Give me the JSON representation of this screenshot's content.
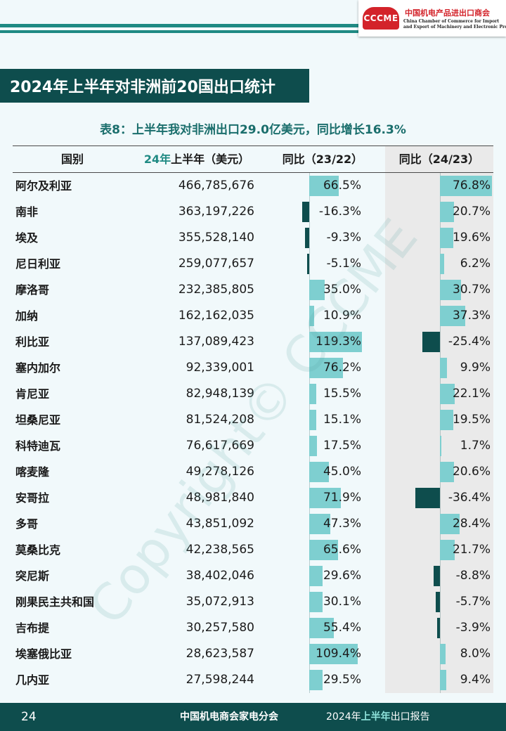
{
  "header": {
    "logo_mark": "CCCME",
    "logo_cn": "中国机电产品进出口商会",
    "logo_en_line1": "China Chamber of Commerce for Import",
    "logo_en_line2": "and Export of Machinery and Electronic Products",
    "accent_color": "#1f8a83"
  },
  "title": "2024年上半年对非洲前20国出口统计",
  "table": {
    "caption": "表8：上半年我对非洲出口29.0亿美元，同比增长16.3%",
    "headers": {
      "country": "国别",
      "value_hl": "24年",
      "value_rest": "上半年（美元）",
      "growth_23_22": "同比（23/22）",
      "growth_24_23": "同比（24/23）"
    },
    "rows": [
      {
        "country": "阿尔及利亚",
        "value": "466,785,676",
        "g23": "66.5%",
        "g24": "76.8%"
      },
      {
        "country": "南非",
        "value": "363,197,226",
        "g23": "-16.3%",
        "g24": "20.7%"
      },
      {
        "country": "埃及",
        "value": "355,528,140",
        "g23": "-9.3%",
        "g24": "19.6%"
      },
      {
        "country": "尼日利亚",
        "value": "259,077,657",
        "g23": "-5.1%",
        "g24": "6.2%"
      },
      {
        "country": "摩洛哥",
        "value": "232,385,805",
        "g23": "35.0%",
        "g24": "30.7%"
      },
      {
        "country": "加纳",
        "value": "162,162,035",
        "g23": "10.9%",
        "g24": "37.3%"
      },
      {
        "country": "利比亚",
        "value": "137,089,423",
        "g23": "119.3%",
        "g24": "-25.4%"
      },
      {
        "country": "塞内加尔",
        "value": "92,339,001",
        "g23": "76.2%",
        "g24": "9.9%"
      },
      {
        "country": "肯尼亚",
        "value": "82,948,139",
        "g23": "15.5%",
        "g24": "22.1%"
      },
      {
        "country": "坦桑尼亚",
        "value": "81,524,208",
        "g23": "15.1%",
        "g24": "19.5%"
      },
      {
        "country": "科特迪瓦",
        "value": "76,617,669",
        "g23": "17.5%",
        "g24": "1.7%"
      },
      {
        "country": "喀麦隆",
        "value": "49,278,126",
        "g23": "45.0%",
        "g24": "20.6%"
      },
      {
        "country": "安哥拉",
        "value": "48,981,840",
        "g23": "71.9%",
        "g24": "-36.4%"
      },
      {
        "country": "多哥",
        "value": "43,851,092",
        "g23": "47.3%",
        "g24": "28.4%"
      },
      {
        "country": "莫桑比克",
        "value": "42,238,565",
        "g23": "65.6%",
        "g24": "21.7%"
      },
      {
        "country": "突尼斯",
        "value": "38,402,046",
        "g23": "29.6%",
        "g24": "-8.8%"
      },
      {
        "country": "刚果民主共和国",
        "value": "35,072,913",
        "g23": "30.1%",
        "g24": "-5.7%"
      },
      {
        "country": "吉布提",
        "value": "30,257,580",
        "g23": "55.4%",
        "g24": "-3.9%"
      },
      {
        "country": "埃塞俄比亚",
        "value": "28,623,587",
        "g23": "109.4%",
        "g24": "8.0%"
      },
      {
        "country": "几内亚",
        "value": "27,598,244",
        "g23": "29.5%",
        "g24": "9.4%"
      }
    ],
    "colors": {
      "positive_bar": "#7ecfd0",
      "negative_bar": "#0e4d4d"
    }
  },
  "watermark": "Copyright© CCCME",
  "footer": {
    "page_number": "24",
    "org": "中国机电商会家电分会",
    "report_pre": "2024年",
    "report_hl": "上半年",
    "report_post": "出口报告"
  }
}
